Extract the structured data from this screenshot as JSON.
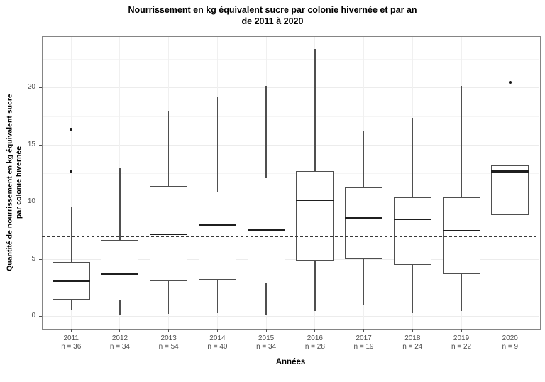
{
  "figure": {
    "title_line1": "Nourrissement en kg équivalent sucre par colonie hivernée et par an",
    "title_line2": "de 2011 à 2020"
  },
  "axes": {
    "x_title": "Années",
    "y_title_line1": "Quantité de nourrissement en kg équivalent sucre",
    "y_title_line2": "par colonie hivernée"
  },
  "chart_data": {
    "type": "boxplot",
    "title": "Nourrissement en kg équivalent sucre par colonie hivernée et par an de 2011 à 2020",
    "xlabel": "Années",
    "ylabel": "Quantité de nourrissement en kg équivalent sucre par colonie hivernée",
    "ylim": [
      -1.06,
      24.53
    ],
    "y_major_ticks": [
      0,
      5,
      10,
      15,
      20
    ],
    "y_minor_ticks": [
      2.5,
      7.5,
      12.5,
      17.5,
      22.5
    ],
    "grid": true,
    "legend": "none",
    "reference_line": {
      "y": 7.0,
      "style": "dashed"
    },
    "boxes": [
      {
        "category": "2011",
        "n_label": "n = 36",
        "n": 36,
        "whisker_low": 0.6,
        "q1": 1.5,
        "median": 3.1,
        "q3": 4.8,
        "whisker_high": 9.6,
        "outliers": [
          12.7,
          16.4
        ]
      },
      {
        "category": "2012",
        "n_label": "n = 34",
        "n": 34,
        "whisker_low": 0.1,
        "q1": 1.4,
        "median": 3.7,
        "q3": 6.7,
        "whisker_high": 13.0,
        "outliers": []
      },
      {
        "category": "2013",
        "n_label": "n = 54",
        "n": 54,
        "whisker_low": 0.25,
        "q1": 3.1,
        "median": 7.2,
        "q3": 11.4,
        "whisker_high": 18.0,
        "outliers": []
      },
      {
        "category": "2014",
        "n_label": "n = 40",
        "n": 40,
        "whisker_low": 0.3,
        "q1": 3.2,
        "median": 8.0,
        "q3": 10.9,
        "whisker_high": 19.2,
        "outliers": []
      },
      {
        "category": "2015",
        "n_label": "n = 34",
        "n": 34,
        "whisker_low": 0.2,
        "q1": 2.9,
        "median": 7.6,
        "q3": 12.2,
        "whisker_high": 20.2,
        "outliers": []
      },
      {
        "category": "2016",
        "n_label": "n = 28",
        "n": 28,
        "whisker_low": 0.5,
        "q1": 4.9,
        "median": 10.2,
        "q3": 12.7,
        "whisker_high": 23.4,
        "outliers": []
      },
      {
        "category": "2017",
        "n_label": "n = 19",
        "n": 19,
        "whisker_low": 1.0,
        "q1": 5.0,
        "median": 8.6,
        "q3": 11.3,
        "whisker_high": 16.3,
        "outliers": []
      },
      {
        "category": "2018",
        "n_label": "n = 24",
        "n": 24,
        "whisker_low": 0.3,
        "q1": 4.5,
        "median": 8.5,
        "q3": 10.4,
        "whisker_high": 17.4,
        "outliers": []
      },
      {
        "category": "2019",
        "n_label": "n = 22",
        "n": 22,
        "whisker_low": 0.5,
        "q1": 3.7,
        "median": 7.5,
        "q3": 10.4,
        "whisker_high": 20.2,
        "outliers": []
      },
      {
        "category": "2020",
        "n_label": "n = 9",
        "n": 9,
        "whisker_low": 6.1,
        "q1": 8.9,
        "median": 12.7,
        "q3": 13.2,
        "whisker_high": 15.8,
        "outliers": [
          20.5
        ]
      }
    ]
  },
  "colors": {
    "background": "#ffffff",
    "box_border": "#4f4f4f",
    "median": "#1f1f1f",
    "whisker": "#4f4f4f",
    "outlier": "#1a1a1a",
    "reference_line": "#3a3a3a",
    "panel_border": "#858585",
    "grid_major": "#ececec",
    "grid_minor": "#f5f5f5",
    "tick_mark": "#4f4f4f",
    "tick_text": "#4d4d4d",
    "title_text": "#000000"
  }
}
